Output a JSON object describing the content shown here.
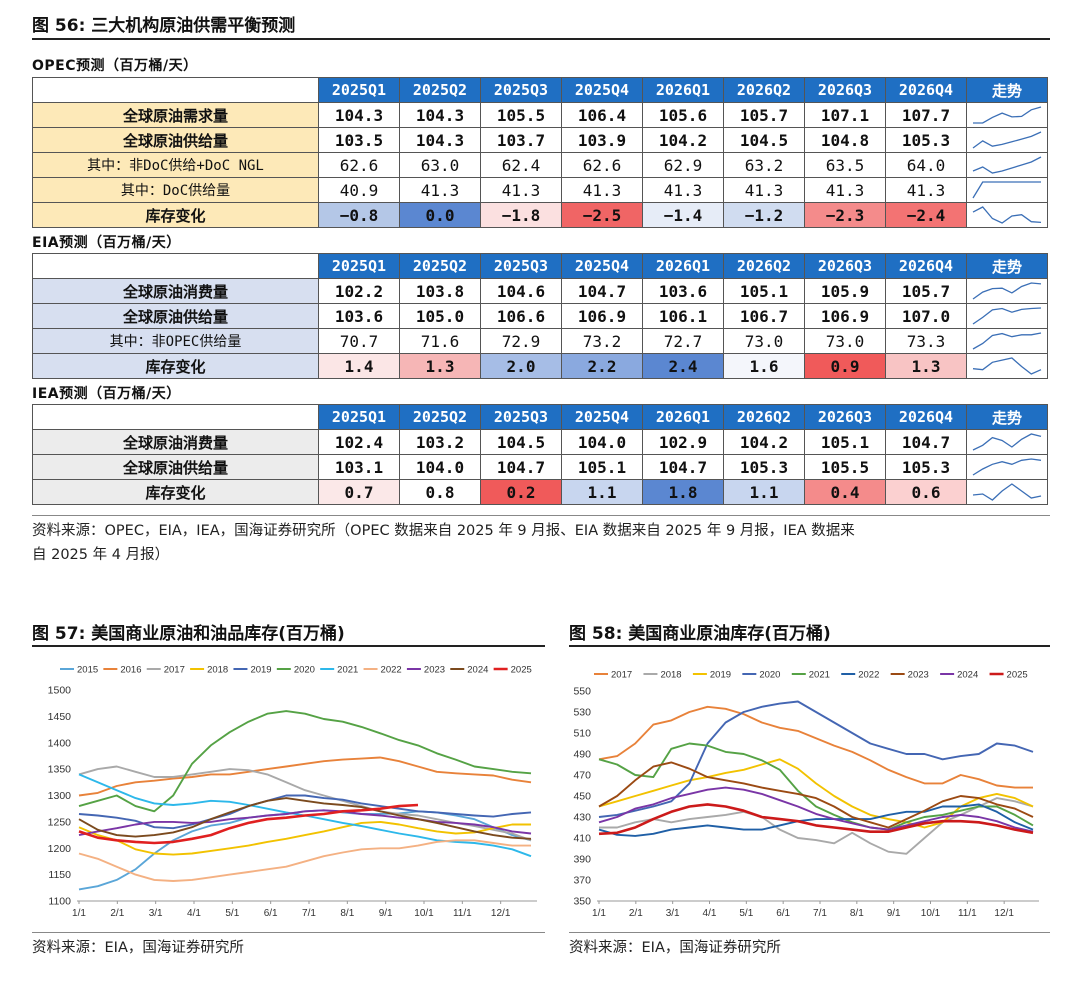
{
  "fig56": {
    "title": "图 56:  三大机构原油供需平衡预测"
  },
  "quarters": [
    "2025Q1",
    "2025Q2",
    "2025Q3",
    "2025Q4",
    "2026Q1",
    "2026Q2",
    "2026Q3",
    "2026Q4"
  ],
  "trend_header": "走势",
  "opec": {
    "title": "OPEC预测（百万桶/天）",
    "rows": [
      {
        "label": "全球原油需求量",
        "values": [
          "104.3",
          "104.3",
          "105.5",
          "106.4",
          "105.6",
          "105.7",
          "107.1",
          "107.7"
        ]
      },
      {
        "label": "全球原油供给量",
        "values": [
          "103.5",
          "104.3",
          "103.7",
          "103.9",
          "104.2",
          "104.5",
          "104.8",
          "105.3"
        ]
      },
      {
        "label": "其中：非DoC供给+DoC NGL",
        "values": [
          "62.6",
          "63.0",
          "62.4",
          "62.6",
          "62.9",
          "63.2",
          "63.5",
          "64.0"
        ]
      },
      {
        "label": "其中：DoC供给量",
        "values": [
          "40.9",
          "41.3",
          "41.3",
          "41.3",
          "41.3",
          "41.3",
          "41.3",
          "41.3"
        ]
      },
      {
        "label": "库存变化",
        "values": [
          "−0.8",
          "0.0",
          "−1.8",
          "−2.5",
          "−1.4",
          "−1.2",
          "−2.3",
          "−2.4"
        ],
        "colors": [
          "#b4c7e7",
          "#5b87d1",
          "#fbe0e0",
          "#f06565",
          "#e6ecf7",
          "#d0dcf0",
          "#f48b8b",
          "#f37373"
        ]
      }
    ]
  },
  "eia": {
    "title": "EIA预测（百万桶/天）",
    "rows": [
      {
        "label": "全球原油消费量",
        "values": [
          "102.2",
          "103.8",
          "104.6",
          "104.7",
          "103.6",
          "105.1",
          "105.9",
          "105.7"
        ]
      },
      {
        "label": "全球原油供给量",
        "values": [
          "103.6",
          "105.0",
          "106.6",
          "106.9",
          "106.1",
          "106.7",
          "106.9",
          "107.0"
        ]
      },
      {
        "label": "其中：非OPEC供给量",
        "values": [
          "70.7",
          "71.6",
          "72.9",
          "73.2",
          "72.7",
          "73.0",
          "73.0",
          "73.3"
        ]
      },
      {
        "label": "库存变化",
        "values": [
          "1.4",
          "1.3",
          "2.0",
          "2.2",
          "2.4",
          "1.6",
          "0.9",
          "1.3"
        ],
        "colors": [
          "#fbe6e6",
          "#f6b6b6",
          "#a6bde6",
          "#8aa9df",
          "#5b87d1",
          "#f4f6fb",
          "#f05a5a",
          "#f8c4c4"
        ]
      }
    ]
  },
  "iea": {
    "title": "IEA预测（百万桶/天）",
    "rows": [
      {
        "label": "全球原油消费量",
        "values": [
          "102.4",
          "103.2",
          "104.5",
          "104.0",
          "102.9",
          "104.2",
          "105.1",
          "104.7"
        ]
      },
      {
        "label": "全球原油供给量",
        "values": [
          "103.1",
          "104.0",
          "104.7",
          "105.1",
          "104.7",
          "105.3",
          "105.5",
          "105.3"
        ]
      },
      {
        "label": "库存变化",
        "values": [
          "0.7",
          "0.8",
          "0.2",
          "1.1",
          "1.8",
          "1.1",
          "0.4",
          "0.6"
        ],
        "colors": [
          "#fbe8e8",
          "#ffffff",
          "#f05a5a",
          "#c8d6ef",
          "#5b87d1",
          "#c8d6ef",
          "#f48b8b",
          "#fbd0d0"
        ]
      }
    ]
  },
  "source56": {
    "line1": "资料来源：OPEC，EIA，IEA，国海证券研究所（OPEC 数据来自 2025 年 9 月报、EIA 数据来自 2025 年 9 月报，IEA 数据来",
    "line2": "自 2025 年 4 月报）"
  },
  "fig57": {
    "title": "图 57:  美国商业原油和油品库存(百万桶)",
    "source": "资料来源：EIA，国海证券研究所"
  },
  "fig58": {
    "title": "图 58:  美国商业原油库存(百万桶)",
    "source": "资料来源：EIA，国海证券研究所"
  },
  "chart_data": [
    {
      "type": "line",
      "title": "美国商业原油和油品库存(百万桶)",
      "ylim": [
        1100,
        1500
      ],
      "yticks": [
        1100,
        1150,
        1200,
        1250,
        1300,
        1350,
        1400,
        1450,
        1500
      ],
      "x_ticks": [
        "1/1",
        "2/1",
        "3/1",
        "4/1",
        "5/1",
        "6/1",
        "7/1",
        "8/1",
        "9/1",
        "10/1",
        "11/1",
        "12/1"
      ],
      "legend": "top",
      "series": [
        {
          "name": "2015",
          "color": "#5aa6d8",
          "values": [
            1122,
            1128,
            1140,
            1160,
            1190,
            1215,
            1232,
            1243,
            1248,
            1258,
            1262,
            1265,
            1270,
            1272,
            1268,
            1265,
            1265,
            1266,
            1270,
            1268,
            1262,
            1255,
            1240,
            1225,
            1215
          ]
        },
        {
          "name": "2016",
          "color": "#e8823a",
          "values": [
            1300,
            1305,
            1318,
            1325,
            1328,
            1332,
            1335,
            1340,
            1340,
            1345,
            1350,
            1355,
            1360,
            1365,
            1368,
            1370,
            1372,
            1365,
            1355,
            1345,
            1342,
            1340,
            1338,
            1330,
            1325
          ]
        },
        {
          "name": "2017",
          "color": "#a9a9a9",
          "values": [
            1340,
            1350,
            1355,
            1345,
            1335,
            1335,
            1340,
            1345,
            1350,
            1348,
            1340,
            1325,
            1310,
            1300,
            1290,
            1280,
            1270,
            1265,
            1262,
            1255,
            1248,
            1242,
            1235,
            1228,
            1215
          ]
        },
        {
          "name": "2018",
          "color": "#f2c200",
          "values": [
            1240,
            1225,
            1215,
            1198,
            1190,
            1188,
            1190,
            1195,
            1200,
            1205,
            1212,
            1218,
            1225,
            1232,
            1240,
            1248,
            1250,
            1245,
            1238,
            1232,
            1228,
            1230,
            1238,
            1245,
            1245
          ]
        },
        {
          "name": "2019",
          "color": "#4466b3",
          "values": [
            1265,
            1262,
            1258,
            1252,
            1240,
            1238,
            1245,
            1255,
            1265,
            1280,
            1290,
            1300,
            1300,
            1295,
            1292,
            1285,
            1280,
            1275,
            1270,
            1268,
            1265,
            1262,
            1260,
            1265,
            1268
          ]
        },
        {
          "name": "2020",
          "color": "#55a245",
          "values": [
            1280,
            1290,
            1300,
            1280,
            1270,
            1300,
            1360,
            1395,
            1420,
            1440,
            1455,
            1460,
            1455,
            1445,
            1440,
            1430,
            1418,
            1405,
            1395,
            1380,
            1368,
            1355,
            1350,
            1345,
            1342
          ]
        },
        {
          "name": "2021",
          "color": "#2db8ea",
          "values": [
            1340,
            1325,
            1310,
            1295,
            1285,
            1282,
            1285,
            1290,
            1288,
            1282,
            1275,
            1268,
            1262,
            1255,
            1248,
            1242,
            1235,
            1228,
            1222,
            1215,
            1212,
            1210,
            1205,
            1198,
            1185
          ]
        },
        {
          "name": "2022",
          "color": "#f4b183",
          "values": [
            1190,
            1180,
            1165,
            1150,
            1140,
            1138,
            1140,
            1145,
            1150,
            1155,
            1160,
            1165,
            1175,
            1185,
            1192,
            1198,
            1200,
            1200,
            1205,
            1212,
            1215,
            1215,
            1210,
            1205,
            1205
          ]
        },
        {
          "name": "2023",
          "color": "#7a35a6",
          "values": [
            1225,
            1232,
            1238,
            1245,
            1250,
            1250,
            1248,
            1250,
            1255,
            1258,
            1262,
            1265,
            1270,
            1272,
            1270,
            1265,
            1262,
            1258,
            1255,
            1250,
            1248,
            1245,
            1240,
            1232,
            1228
          ]
        },
        {
          "name": "2024",
          "color": "#7b4a1e",
          "values": [
            1255,
            1235,
            1225,
            1222,
            1225,
            1230,
            1240,
            1255,
            1268,
            1280,
            1290,
            1295,
            1290,
            1285,
            1282,
            1278,
            1270,
            1262,
            1255,
            1248,
            1240,
            1232,
            1225,
            1220,
            1218
          ]
        },
        {
          "name": "2025",
          "color": "#e02020",
          "values": [
            1232,
            1220,
            1215,
            1212,
            1210,
            1212,
            1218,
            1225,
            1238,
            1248,
            1255,
            1258,
            1262,
            1265,
            1270,
            1272,
            1275,
            1280,
            1282
          ]
        }
      ]
    },
    {
      "type": "line",
      "title": "美国商业原油库存(百万桶)",
      "ylim": [
        350,
        550
      ],
      "yticks": [
        350,
        370,
        390,
        410,
        430,
        450,
        470,
        490,
        510,
        530,
        550
      ],
      "x_ticks": [
        "1/1",
        "2/1",
        "3/1",
        "4/1",
        "5/1",
        "6/1",
        "7/1",
        "8/1",
        "9/1",
        "10/1",
        "11/1",
        "12/1"
      ],
      "legend": "top",
      "series": [
        {
          "name": "2017",
          "color": "#e8823a",
          "values": [
            485,
            488,
            500,
            518,
            522,
            530,
            535,
            533,
            528,
            520,
            515,
            512,
            505,
            498,
            492,
            484,
            475,
            468,
            462,
            462,
            470,
            466,
            460,
            458,
            458
          ]
        },
        {
          "name": "2018",
          "color": "#a9a9a9",
          "values": [
            420,
            420,
            425,
            428,
            425,
            428,
            430,
            432,
            435,
            430,
            418,
            410,
            408,
            405,
            415,
            405,
            397,
            395,
            410,
            425,
            432,
            440,
            448,
            445,
            440
          ]
        },
        {
          "name": "2019",
          "color": "#f2c200",
          "values": [
            440,
            445,
            450,
            455,
            460,
            465,
            468,
            472,
            475,
            480,
            485,
            476,
            462,
            450,
            440,
            432,
            428,
            425,
            420,
            425,
            440,
            448,
            452,
            448,
            440
          ]
        },
        {
          "name": "2020",
          "color": "#4466b3",
          "values": [
            430,
            432,
            436,
            440,
            445,
            462,
            500,
            520,
            530,
            535,
            538,
            540,
            530,
            520,
            510,
            500,
            495,
            490,
            490,
            485,
            488,
            490,
            500,
            498,
            492
          ]
        },
        {
          "name": "2021",
          "color": "#55a245",
          "values": [
            485,
            480,
            470,
            468,
            495,
            500,
            498,
            492,
            490,
            484,
            475,
            455,
            440,
            432,
            425,
            420,
            418,
            425,
            430,
            432,
            436,
            440,
            440,
            432,
            422
          ]
        },
        {
          "name": "2022",
          "color": "#1f5fa6",
          "values": [
            418,
            413,
            412,
            414,
            418,
            420,
            422,
            420,
            418,
            418,
            422,
            426,
            428,
            428,
            428,
            428,
            432,
            435,
            435,
            440,
            440,
            442,
            435,
            425,
            418
          ]
        },
        {
          "name": "2023",
          "color": "#9b4a13",
          "values": [
            440,
            450,
            465,
            478,
            482,
            476,
            468,
            465,
            462,
            458,
            455,
            452,
            448,
            440,
            430,
            425,
            420,
            428,
            436,
            445,
            450,
            448,
            442,
            438,
            430
          ]
        },
        {
          "name": "2024",
          "color": "#7a35a6",
          "values": [
            425,
            430,
            438,
            442,
            448,
            452,
            456,
            458,
            456,
            452,
            446,
            440,
            433,
            428,
            424,
            420,
            418,
            422,
            426,
            430,
            432,
            430,
            426,
            420,
            416
          ]
        },
        {
          "name": "2025",
          "color": "#cc1a1a",
          "values": [
            414,
            415,
            420,
            428,
            435,
            440,
            442,
            440,
            436,
            430,
            428,
            426,
            422,
            420,
            418,
            416,
            416,
            420,
            424,
            426,
            426,
            425,
            422,
            418,
            415
          ]
        }
      ]
    }
  ]
}
